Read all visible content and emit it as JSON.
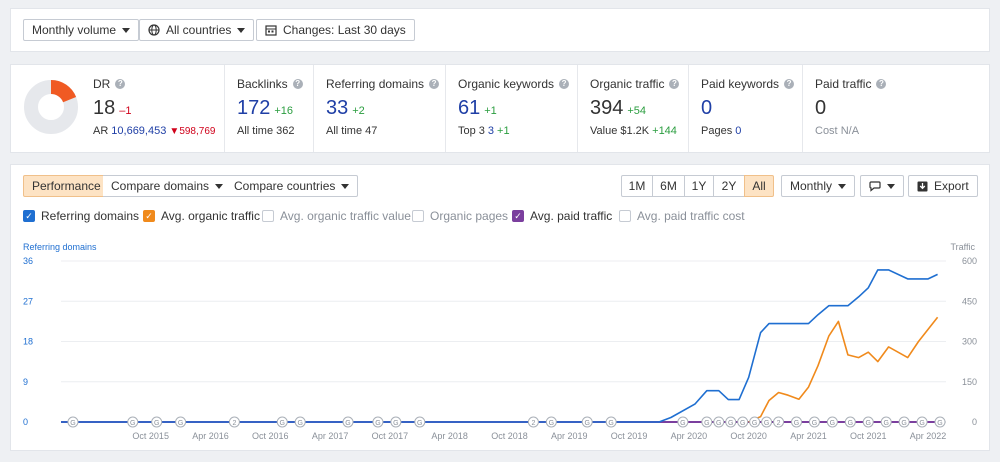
{
  "toolbar": {
    "volume": "Monthly volume",
    "country": "All countries",
    "changes": "Changes: Last 30 days"
  },
  "metrics": {
    "dr": {
      "title": "DR",
      "value": "18",
      "delta": "–1",
      "ar_label": "AR",
      "ar_value": "10,669,453",
      "ar_delta": "598,769"
    },
    "backlinks": {
      "title": "Backlinks",
      "value": "172",
      "delta": "+16",
      "sub_label": "All time",
      "sub_value": "362"
    },
    "refdomains": {
      "title": "Referring domains",
      "value": "33",
      "delta": "+2",
      "sub_label": "All time",
      "sub_value": "47"
    },
    "orgkw": {
      "title": "Organic keywords",
      "value": "61",
      "delta": "+1",
      "sub_label": "Top 3",
      "sub_value": "3",
      "sub_delta": "+1"
    },
    "orgtraffic": {
      "title": "Organic traffic",
      "value": "394",
      "delta": "+54",
      "sub_label": "Value",
      "sub_value": "$1.2K",
      "sub_delta": "+144"
    },
    "paidkw": {
      "title": "Paid keywords",
      "value": "0",
      "sub_label": "Pages",
      "sub_value": "0"
    },
    "paidtraffic": {
      "title": "Paid traffic",
      "value": "0",
      "sub_label": "Cost",
      "sub_value": "N/A"
    }
  },
  "tabs": {
    "performance": "Performance",
    "compare_domains": "Compare domains",
    "compare_countries": "Compare countries"
  },
  "ranges": [
    "1M",
    "6M",
    "1Y",
    "2Y",
    "All"
  ],
  "active_range": "All",
  "interval": "Monthly",
  "export": "Export",
  "checkboxes": {
    "refdomains": "Referring domains",
    "avg_org": "Avg. organic traffic",
    "avg_org_value": "Avg. organic traffic value",
    "org_pages": "Organic pages",
    "avg_paid": "Avg. paid traffic",
    "avg_paid_cost": "Avg. paid traffic cost"
  },
  "colors": {
    "blue": "#1f6fd1",
    "orange": "#f08a1c",
    "purple": "#7b3f9e",
    "red": "#d0021b",
    "accent": "#fde3c4"
  },
  "chart_data": {
    "type": "line",
    "left_axis_title": "Referring domains",
    "right_axis_title": "Traffic",
    "left_ticks": [
      36,
      27,
      18,
      9,
      0
    ],
    "right_ticks": [
      600,
      450,
      300,
      150,
      0
    ],
    "left_ylim": [
      0,
      36
    ],
    "right_ylim": [
      0,
      600
    ],
    "x_labels": [
      "Oct 2015",
      "Apr 2016",
      "Oct 2016",
      "Apr 2017",
      "Oct 2017",
      "Apr 2018",
      "Oct 2018",
      "Apr 2019",
      "Oct 2019",
      "Apr 2020",
      "Oct 2020",
      "Apr 2021",
      "Oct 2021",
      "Apr 2022"
    ],
    "x_range": [
      2015.0,
      2022.4
    ],
    "series": [
      {
        "name": "Referring domains",
        "axis": "left",
        "points": [
          [
            2015.0,
            0
          ],
          [
            2020.0,
            0
          ],
          [
            2020.1,
            1
          ],
          [
            2020.3,
            4
          ],
          [
            2020.4,
            7
          ],
          [
            2020.5,
            7
          ],
          [
            2020.58,
            5
          ],
          [
            2020.67,
            5
          ],
          [
            2020.75,
            10
          ],
          [
            2020.85,
            20
          ],
          [
            2020.92,
            22
          ],
          [
            2021.25,
            22
          ],
          [
            2021.33,
            24
          ],
          [
            2021.42,
            26
          ],
          [
            2021.58,
            26
          ],
          [
            2021.67,
            28
          ],
          [
            2021.75,
            30
          ],
          [
            2021.83,
            34
          ],
          [
            2021.92,
            34
          ],
          [
            2022.08,
            32
          ],
          [
            2022.25,
            32
          ],
          [
            2022.33,
            33
          ]
        ]
      },
      {
        "name": "Avg. organic traffic",
        "axis": "right",
        "points": [
          [
            2020.75,
            0
          ],
          [
            2020.85,
            20
          ],
          [
            2020.92,
            80
          ],
          [
            2021.0,
            110
          ],
          [
            2021.08,
            100
          ],
          [
            2021.17,
            85
          ],
          [
            2021.25,
            130
          ],
          [
            2021.33,
            210
          ],
          [
            2021.42,
            320
          ],
          [
            2021.5,
            375
          ],
          [
            2021.58,
            250
          ],
          [
            2021.67,
            240
          ],
          [
            2021.75,
            260
          ],
          [
            2021.83,
            225
          ],
          [
            2021.92,
            280
          ],
          [
            2022.08,
            240
          ],
          [
            2022.17,
            300
          ],
          [
            2022.33,
            390
          ]
        ]
      },
      {
        "name": "Avg. paid traffic",
        "axis": "right",
        "points": [
          [
            2015.0,
            0
          ],
          [
            2022.35,
            0
          ]
        ]
      }
    ],
    "annotations": {
      "positions": [
        2015.1,
        2015.6,
        2015.8,
        2016.0,
        2016.45,
        2016.85,
        2017.0,
        2017.4,
        2017.65,
        2017.8,
        2018.0,
        2018.95,
        2019.1,
        2019.4,
        2019.6,
        2020.2,
        2020.4,
        2020.5,
        2020.6,
        2020.7,
        2020.8,
        2020.9,
        2021.0,
        2021.15,
        2021.3,
        2021.45,
        2021.6,
        2021.75,
        2021.9,
        2022.05,
        2022.2,
        2022.35,
        2022.45,
        2022.55,
        2022.7,
        2022.85,
        2023.0,
        2023.1
      ],
      "labels": [
        "G",
        "G",
        "G",
        "G",
        "2",
        "G",
        "G",
        "G",
        "G",
        "G",
        "G",
        "2",
        "G",
        "G",
        "G",
        "G",
        "G",
        "G",
        "G",
        "G",
        "G",
        "G",
        "2",
        "G",
        "G",
        "G",
        "G",
        "G",
        "G",
        "G",
        "G",
        "G",
        "G",
        "G",
        "G",
        "G",
        "G",
        "G"
      ]
    }
  }
}
